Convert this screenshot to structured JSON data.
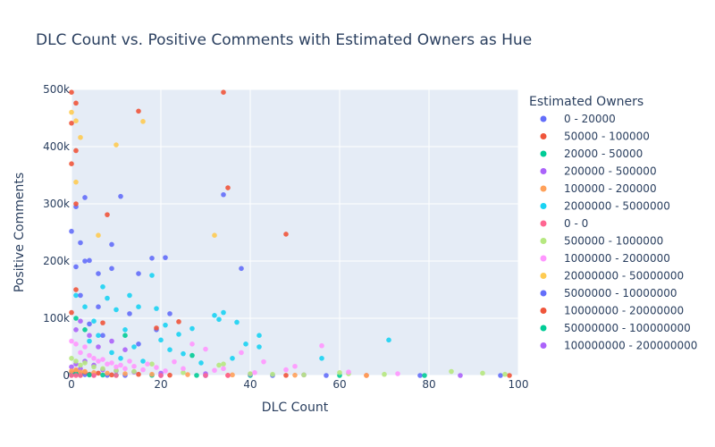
{
  "chart_data": {
    "type": "scatter",
    "title": "DLC Count vs. Positive Comments with Estimated Owners as Hue",
    "xlabel": "DLC Count",
    "ylabel": "Positive Comments",
    "xlim": [
      0,
      100
    ],
    "ylim": [
      0,
      500000
    ],
    "x_ticks": [
      0,
      20,
      40,
      60,
      80,
      100
    ],
    "x_tick_labels": [
      "0",
      "20",
      "40",
      "60",
      "80",
      "100"
    ],
    "y_ticks": [
      0,
      100000,
      200000,
      300000,
      400000,
      500000
    ],
    "y_tick_labels": [
      "0",
      "100k",
      "200k",
      "300k",
      "400k",
      "500k"
    ],
    "grid": true,
    "legend_title": "Estimated Owners",
    "legend_position": "right",
    "series": [
      {
        "name": "0 - 20000",
        "color": "#636efa",
        "points": [
          [
            0,
            1000
          ],
          [
            1,
            2000
          ],
          [
            2,
            500
          ],
          [
            3,
            1500
          ],
          [
            5,
            800
          ],
          [
            8,
            300
          ],
          [
            12,
            200
          ],
          [
            20,
            100
          ],
          [
            30,
            50
          ],
          [
            45,
            0
          ],
          [
            57,
            0
          ],
          [
            78,
            0
          ],
          [
            96,
            0
          ]
        ]
      },
      {
        "name": "50000 - 100000",
        "color": "#ef553b",
        "points": [
          [
            0,
            5000
          ],
          [
            1,
            8000
          ],
          [
            2,
            3000
          ],
          [
            3,
            6000
          ],
          [
            4,
            2000
          ],
          [
            6,
            4000
          ],
          [
            9,
            1000
          ],
          [
            15,
            2000
          ],
          [
            22,
            500
          ],
          [
            35,
            300
          ],
          [
            48,
            200
          ],
          [
            66,
            100
          ],
          [
            98,
            0
          ]
        ]
      },
      {
        "name": "20000 - 50000",
        "color": "#00cc96",
        "points": [
          [
            0,
            2000
          ],
          [
            1,
            3000
          ],
          [
            2,
            1500
          ],
          [
            4,
            1000
          ],
          [
            7,
            800
          ],
          [
            10,
            500
          ],
          [
            18,
            400
          ],
          [
            28,
            200
          ],
          [
            40,
            100
          ],
          [
            60,
            0
          ],
          [
            79,
            0
          ]
        ]
      },
      {
        "name": "200000 - 500000",
        "color": "#ab63fa",
        "points": [
          [
            0,
            15000
          ],
          [
            1,
            20000
          ],
          [
            2,
            12000
          ],
          [
            3,
            25000
          ],
          [
            5,
            18000
          ],
          [
            7,
            10000
          ],
          [
            10,
            8000
          ],
          [
            14,
            6000
          ],
          [
            20,
            4000
          ],
          [
            30,
            3000
          ],
          [
            40,
            2000
          ],
          [
            52,
            1000
          ],
          [
            87,
            0
          ]
        ]
      },
      {
        "name": "100000 - 200000",
        "color": "#ffa15a",
        "points": [
          [
            0,
            8000
          ],
          [
            1,
            10000
          ],
          [
            2,
            6000
          ],
          [
            3,
            7000
          ],
          [
            5,
            5000
          ],
          [
            8,
            4000
          ],
          [
            12,
            3000
          ],
          [
            18,
            2000
          ],
          [
            26,
            1500
          ],
          [
            36,
            1000
          ],
          [
            50,
            500
          ],
          [
            66,
            0
          ]
        ]
      },
      {
        "name": "2000000 - 5000000",
        "color": "#19d3f3",
        "points": [
          [
            1,
            140000
          ],
          [
            3,
            120000
          ],
          [
            5,
            95000
          ],
          [
            7,
            155000
          ],
          [
            8,
            135000
          ],
          [
            10,
            115000
          ],
          [
            12,
            80000
          ],
          [
            13,
            140000
          ],
          [
            15,
            120000
          ],
          [
            18,
            175000
          ],
          [
            19,
            117000
          ],
          [
            20,
            62000
          ],
          [
            21,
            88000
          ],
          [
            22,
            45000
          ],
          [
            24,
            72000
          ],
          [
            25,
            38000
          ],
          [
            27,
            82000
          ],
          [
            29,
            22000
          ],
          [
            32,
            105000
          ],
          [
            33,
            98000
          ],
          [
            34,
            110000
          ],
          [
            36,
            30000
          ],
          [
            37,
            93000
          ],
          [
            39,
            55000
          ],
          [
            42,
            70000
          ],
          [
            42,
            50000
          ],
          [
            56,
            30000
          ],
          [
            71,
            62000
          ],
          [
            4,
            60000
          ],
          [
            6,
            70000
          ],
          [
            9,
            40000
          ],
          [
            11,
            30000
          ],
          [
            14,
            50000
          ],
          [
            16,
            25000
          ]
        ]
      },
      {
        "name": "0 - 0",
        "color": "#ff6692",
        "points": [
          [
            0,
            0
          ],
          [
            1,
            0
          ],
          [
            2,
            0
          ],
          [
            5,
            0
          ],
          [
            10,
            0
          ],
          [
            20,
            0
          ],
          [
            30,
            0
          ],
          [
            35,
            0
          ]
        ]
      },
      {
        "name": "500000 - 1000000",
        "color": "#b6e880",
        "points": [
          [
            0,
            30000
          ],
          [
            1,
            25000
          ],
          [
            2,
            18000
          ],
          [
            3,
            22000
          ],
          [
            5,
            15000
          ],
          [
            7,
            12000
          ],
          [
            10,
            9000
          ],
          [
            14,
            7000
          ],
          [
            18,
            20000
          ],
          [
            25,
            5000
          ],
          [
            33,
            18000
          ],
          [
            34,
            20000
          ],
          [
            40,
            3000
          ],
          [
            45,
            2000
          ],
          [
            52,
            1000
          ],
          [
            60,
            5000
          ],
          [
            62,
            3000
          ],
          [
            70,
            2000
          ],
          [
            85,
            7000
          ],
          [
            92,
            4000
          ],
          [
            97,
            2000
          ]
        ]
      },
      {
        "name": "1000000 - 2000000",
        "color": "#ff97ff",
        "points": [
          [
            0,
            60000
          ],
          [
            1,
            55000
          ],
          [
            2,
            40000
          ],
          [
            3,
            50000
          ],
          [
            4,
            35000
          ],
          [
            5,
            30000
          ],
          [
            6,
            25000
          ],
          [
            7,
            28000
          ],
          [
            8,
            20000
          ],
          [
            9,
            22000
          ],
          [
            10,
            15000
          ],
          [
            11,
            18000
          ],
          [
            12,
            12000
          ],
          [
            13,
            25000
          ],
          [
            14,
            16000
          ],
          [
            16,
            10000
          ],
          [
            17,
            20000
          ],
          [
            19,
            14000
          ],
          [
            21,
            8000
          ],
          [
            23,
            24000
          ],
          [
            25,
            12000
          ],
          [
            27,
            55000
          ],
          [
            30,
            46000
          ],
          [
            32,
            9000
          ],
          [
            34,
            12000
          ],
          [
            38,
            40000
          ],
          [
            41,
            5000
          ],
          [
            43,
            24000
          ],
          [
            48,
            10000
          ],
          [
            50,
            16000
          ],
          [
            56,
            52000
          ],
          [
            62,
            6000
          ],
          [
            73,
            3000
          ]
        ]
      },
      {
        "name": "20000000 - 50000000",
        "color": "#fecb52",
        "points": [
          [
            0,
            460000
          ],
          [
            1,
            445000
          ],
          [
            1,
            338000
          ],
          [
            2,
            416000
          ],
          [
            6,
            245000
          ],
          [
            10,
            403000
          ],
          [
            16,
            444000
          ],
          [
            32,
            245000
          ]
        ]
      },
      {
        "name": "5000000 - 10000000",
        "color": "#636efa",
        "points": [
          [
            0,
            252000
          ],
          [
            1,
            295000
          ],
          [
            1,
            190000
          ],
          [
            2,
            232000
          ],
          [
            3,
            311000
          ],
          [
            3,
            200000
          ],
          [
            4,
            201000
          ],
          [
            6,
            178000
          ],
          [
            9,
            229000
          ],
          [
            9,
            187000
          ],
          [
            11,
            313000
          ],
          [
            15,
            178000
          ],
          [
            18,
            205000
          ],
          [
            21,
            206000
          ],
          [
            34,
            316000
          ],
          [
            38,
            187000
          ],
          [
            2,
            140000
          ],
          [
            4,
            90000
          ],
          [
            7,
            70000
          ],
          [
            13,
            108000
          ],
          [
            22,
            108000
          ],
          [
            15,
            55000
          ],
          [
            19,
            80000
          ],
          [
            6,
            120000
          ]
        ]
      },
      {
        "name": "10000000 - 20000000",
        "color": "#ef553b",
        "points": [
          [
            0,
            495000
          ],
          [
            1,
            476000
          ],
          [
            0,
            441000
          ],
          [
            1,
            393000
          ],
          [
            0,
            370000
          ],
          [
            1,
            300000
          ],
          [
            8,
            281000
          ],
          [
            15,
            462000
          ],
          [
            34,
            495000
          ],
          [
            35,
            328000
          ],
          [
            48,
            247000
          ],
          [
            1,
            150000
          ],
          [
            0,
            110000
          ],
          [
            7,
            92000
          ],
          [
            19,
            83000
          ],
          [
            24,
            94000
          ]
        ]
      },
      {
        "name": "50000000 - 100000000",
        "color": "#00cc96",
        "points": [
          [
            1,
            100000
          ],
          [
            3,
            80000
          ],
          [
            12,
            70000
          ],
          [
            27,
            35000
          ]
        ]
      },
      {
        "name": "100000000 - 200000000",
        "color": "#ab63fa",
        "points": [
          [
            1,
            80000
          ],
          [
            2,
            95000
          ],
          [
            4,
            70000
          ],
          [
            6,
            50000
          ],
          [
            9,
            60000
          ],
          [
            12,
            45000
          ]
        ]
      }
    ]
  }
}
